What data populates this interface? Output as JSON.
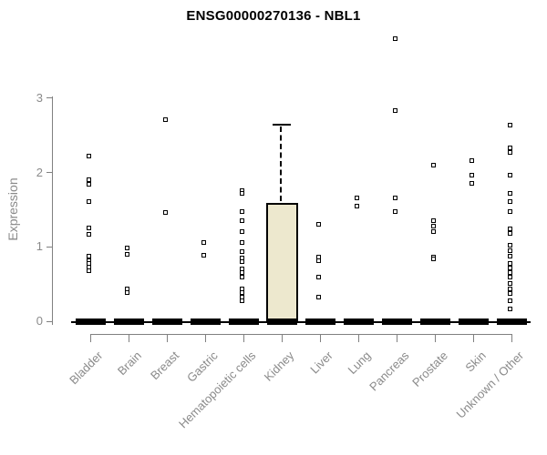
{
  "title": "ENSG00000270136 - NBL1",
  "chart_data": {
    "type": "boxplot",
    "title": "ENSG00000270136 - NBL1",
    "xlabel": "",
    "ylabel": "Expression",
    "yticks": [
      0,
      1,
      2,
      3
    ],
    "ylim": [
      0,
      3.9
    ],
    "grid": "off",
    "legend": "none",
    "categories": [
      "Bladder",
      "Brain",
      "Breast",
      "Gastric",
      "Hematopoietic cells",
      "Kidney",
      "Liver",
      "Lung",
      "Pancreas",
      "Prostate",
      "Skin",
      "Unknown / Other"
    ],
    "groups": [
      {
        "category": "Bladder",
        "box": {
          "q1": 0,
          "median": 0,
          "q3": 0,
          "whisker_low": 0,
          "whisker_high": 0
        },
        "points": [
          2.22,
          1.91,
          1.84,
          1.61,
          1.26,
          1.17,
          0.87,
          0.82,
          0.78,
          0.73,
          0.68
        ]
      },
      {
        "category": "Brain",
        "box": {
          "q1": 0,
          "median": 0,
          "q3": 0,
          "whisker_low": 0,
          "whisker_high": 0
        },
        "points": [
          0.99,
          0.9,
          0.44,
          0.38
        ]
      },
      {
        "category": "Breast",
        "box": {
          "q1": 0,
          "median": 0,
          "q3": 0,
          "whisker_low": 0,
          "whisker_high": 0
        },
        "points": [
          2.71,
          1.46
        ]
      },
      {
        "category": "Gastric",
        "box": {
          "q1": 0,
          "median": 0,
          "q3": 0,
          "whisker_low": 0,
          "whisker_high": 0
        },
        "points": [
          1.06,
          0.89
        ]
      },
      {
        "category": "Hematopoietic cells",
        "box": {
          "q1": 0,
          "median": 0,
          "q3": 0,
          "whisker_low": 0,
          "whisker_high": 0
        },
        "points": [
          1.76,
          1.72,
          1.47,
          1.35,
          1.2,
          1.06,
          0.94,
          0.85,
          0.8,
          0.71,
          0.66,
          0.59,
          0.43,
          0.38,
          0.33,
          0.28
        ]
      },
      {
        "category": "Kidney",
        "box": {
          "q1": 0,
          "median": 0.02,
          "q3": 1.59,
          "whisker_low": 0,
          "whisker_high": 2.64
        },
        "points": []
      },
      {
        "category": "Liver",
        "box": {
          "q1": 0,
          "median": 0,
          "q3": 0,
          "whisker_low": 0,
          "whisker_high": 0
        },
        "points": [
          1.3,
          0.86,
          0.81,
          0.59,
          0.32
        ]
      },
      {
        "category": "Lung",
        "box": {
          "q1": 0,
          "median": 0,
          "q3": 0,
          "whisker_low": 0,
          "whisker_high": 0
        },
        "points": [
          1.66,
          1.55
        ]
      },
      {
        "category": "Pancreas",
        "box": {
          "q1": 0,
          "median": 0,
          "q3": 0,
          "whisker_low": 0,
          "whisker_high": 0
        },
        "points": [
          3.8,
          2.83,
          1.66,
          1.48
        ]
      },
      {
        "category": "Prostate",
        "box": {
          "q1": 0,
          "median": 0,
          "q3": 0,
          "whisker_low": 0,
          "whisker_high": 0
        },
        "points": [
          2.1,
          1.35,
          1.28,
          1.21,
          0.86,
          0.84
        ]
      },
      {
        "category": "Skin",
        "box": {
          "q1": 0,
          "median": 0,
          "q3": 0,
          "whisker_low": 0,
          "whisker_high": 0
        },
        "points": [
          2.16,
          1.96,
          1.85
        ]
      },
      {
        "category": "Unknown / Other",
        "box": {
          "q1": 0,
          "median": 0,
          "q3": 0,
          "whisker_low": 0,
          "whisker_high": 0
        },
        "points": [
          2.64,
          2.33,
          2.27,
          1.97,
          1.72,
          1.61,
          1.48,
          1.24,
          1.18,
          1.02,
          0.95,
          0.87,
          0.78,
          0.72,
          0.66,
          0.59,
          0.51,
          0.43,
          0.37,
          0.27,
          0.16
        ]
      }
    ],
    "colors": {
      "box_fill": "#ede8ce",
      "box_border": "#000000",
      "point": "#000000",
      "axis": "#808080",
      "tick_text": "#8a8a8a",
      "title_text": "#000000"
    }
  }
}
